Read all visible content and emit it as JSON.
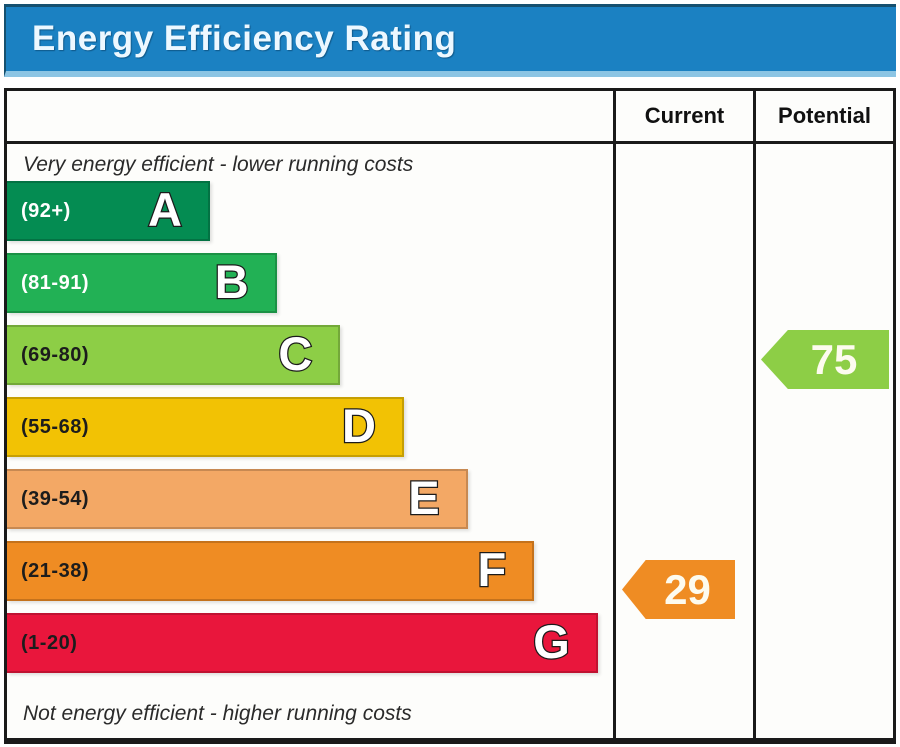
{
  "header": {
    "title": "Energy Efficiency Rating",
    "bg_color": "#1b81c2",
    "accent_color": "#8cc5e4"
  },
  "table": {
    "columns": {
      "current": "Current",
      "potential": "Potential"
    },
    "top_note": "Very energy efficient - lower running costs",
    "bottom_note": "Not energy efficient - higher running costs",
    "bands": [
      {
        "letter": "A",
        "range": "(92+)",
        "color": "#048c52",
        "width_pct": 33.5,
        "range_text_color": "#ffffff"
      },
      {
        "letter": "B",
        "range": "(81-91)",
        "color": "#22b155",
        "width_pct": 44.5,
        "range_text_color": "#ffffff"
      },
      {
        "letter": "C",
        "range": "(69-80)",
        "color": "#8dce46",
        "width_pct": 55.0,
        "range_text_color": "#1c1c1c"
      },
      {
        "letter": "D",
        "range": "(55-68)",
        "color": "#f2c204",
        "width_pct": 65.5,
        "range_text_color": "#1c1c1c"
      },
      {
        "letter": "E",
        "range": "(39-54)",
        "color": "#f3a865",
        "width_pct": 76.0,
        "range_text_color": "#1c1c1c"
      },
      {
        "letter": "F",
        "range": "(21-38)",
        "color": "#ef8c23",
        "width_pct": 87.0,
        "range_text_color": "#1c1c1c"
      },
      {
        "letter": "G",
        "range": "(1-20)",
        "color": "#e9163c",
        "width_pct": 97.5,
        "range_text_color": "#1c1c1c"
      }
    ],
    "ratings": {
      "current": {
        "value": "29",
        "color": "#ef8c23",
        "band": "F"
      },
      "potential": {
        "value": "75",
        "color": "#8dce46",
        "band": "C"
      }
    }
  },
  "chart_data": {
    "type": "bar",
    "title": "Energy Efficiency Rating",
    "orientation": "horizontal",
    "categories": [
      "A",
      "B",
      "C",
      "D",
      "E",
      "F",
      "G"
    ],
    "category_ranges": [
      "92+",
      "81-91",
      "69-80",
      "55-68",
      "39-54",
      "21-38",
      "1-20"
    ],
    "values": [
      33.5,
      44.5,
      55.0,
      65.5,
      76.0,
      87.0,
      97.5
    ],
    "values_unit": "bar length, % of column width",
    "band_colors": [
      "#048c52",
      "#22b155",
      "#8dce46",
      "#f2c204",
      "#f3a865",
      "#ef8c23",
      "#e9163c"
    ],
    "annotations": [
      {
        "label": "Current",
        "value": 29,
        "band": "F",
        "color": "#ef8c23"
      },
      {
        "label": "Potential",
        "value": 75,
        "band": "C",
        "color": "#8dce46"
      }
    ],
    "top_label": "Very energy efficient - lower running costs",
    "bottom_label": "Not energy efficient - higher running costs",
    "legend_position": "none",
    "grid": false
  }
}
